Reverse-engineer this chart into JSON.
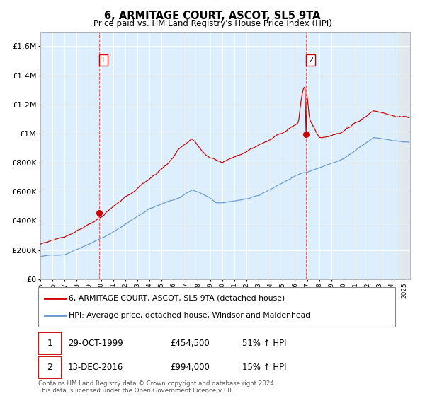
{
  "title": "6, ARMITAGE COURT, ASCOT, SL5 9TA",
  "subtitle": "Price paid vs. HM Land Registry's House Price Index (HPI)",
  "fig_bg_color": "#ffffff",
  "plot_bg_color": "#ddeeff",
  "red_line_color": "#cc0000",
  "blue_line_color": "#6699cc",
  "ylim": [
    0,
    1700000
  ],
  "yticks": [
    0,
    200000,
    400000,
    600000,
    800000,
    1000000,
    1200000,
    1400000,
    1600000
  ],
  "sale1_year": 1999.83,
  "sale1_price": 454500,
  "sale1_date_label": "29-OCT-1999",
  "sale1_pct": "51%",
  "sale2_year": 2016.95,
  "sale2_price": 994000,
  "sale2_date_label": "13-DEC-2016",
  "sale2_pct": "15%",
  "legend_line1": "6, ARMITAGE COURT, ASCOT, SL5 9TA (detached house)",
  "legend_line2": "HPI: Average price, detached house, Windsor and Maidenhead",
  "footer": "Contains HM Land Registry data © Crown copyright and database right 2024.\nThis data is licensed under the Open Government Licence v3.0.",
  "xmin": 1995.0,
  "xmax": 2025.5
}
